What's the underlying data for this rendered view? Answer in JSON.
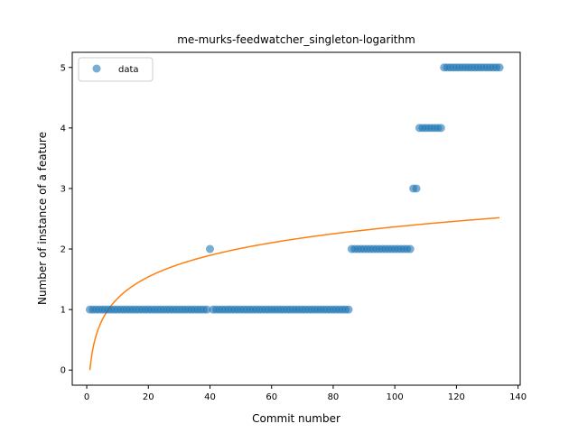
{
  "chart_data": {
    "type": "scatter",
    "title": "me-murks-feedwatcher_singleton-logarithm",
    "xlabel": "Commit number",
    "ylabel": "Number of instance of a feature",
    "xlim": [
      -4.7,
      140.7
    ],
    "ylim": [
      -0.25,
      5.25
    ],
    "xticks": [
      0,
      20,
      40,
      60,
      80,
      100,
      120,
      140
    ],
    "yticks": [
      0,
      1,
      2,
      3,
      4,
      5
    ],
    "legend": {
      "position": "top-left",
      "entries": [
        "data"
      ]
    },
    "grid": false,
    "colors": {
      "data": "#1f77b4",
      "fit": "#ff7f0e"
    },
    "series": [
      {
        "name": "data",
        "kind": "scatter",
        "points": [
          [
            1,
            1
          ],
          [
            2,
            1
          ],
          [
            3,
            1
          ],
          [
            4,
            1
          ],
          [
            5,
            1
          ],
          [
            6,
            1
          ],
          [
            7,
            1
          ],
          [
            8,
            1
          ],
          [
            9,
            1
          ],
          [
            10,
            1
          ],
          [
            11,
            1
          ],
          [
            12,
            1
          ],
          [
            13,
            1
          ],
          [
            14,
            1
          ],
          [
            15,
            1
          ],
          [
            16,
            1
          ],
          [
            17,
            1
          ],
          [
            18,
            1
          ],
          [
            19,
            1
          ],
          [
            20,
            1
          ],
          [
            21,
            1
          ],
          [
            22,
            1
          ],
          [
            23,
            1
          ],
          [
            24,
            1
          ],
          [
            25,
            1
          ],
          [
            26,
            1
          ],
          [
            27,
            1
          ],
          [
            28,
            1
          ],
          [
            29,
            1
          ],
          [
            30,
            1
          ],
          [
            31,
            1
          ],
          [
            32,
            1
          ],
          [
            33,
            1
          ],
          [
            34,
            1
          ],
          [
            35,
            1
          ],
          [
            36,
            1
          ],
          [
            37,
            1
          ],
          [
            38,
            1
          ],
          [
            39,
            1
          ],
          [
            40,
            2
          ],
          [
            41,
            1
          ],
          [
            42,
            1
          ],
          [
            43,
            1
          ],
          [
            44,
            1
          ],
          [
            45,
            1
          ],
          [
            46,
            1
          ],
          [
            47,
            1
          ],
          [
            48,
            1
          ],
          [
            49,
            1
          ],
          [
            50,
            1
          ],
          [
            51,
            1
          ],
          [
            52,
            1
          ],
          [
            53,
            1
          ],
          [
            54,
            1
          ],
          [
            55,
            1
          ],
          [
            56,
            1
          ],
          [
            57,
            1
          ],
          [
            58,
            1
          ],
          [
            59,
            1
          ],
          [
            60,
            1
          ],
          [
            61,
            1
          ],
          [
            62,
            1
          ],
          [
            63,
            1
          ],
          [
            64,
            1
          ],
          [
            65,
            1
          ],
          [
            66,
            1
          ],
          [
            67,
            1
          ],
          [
            68,
            1
          ],
          [
            69,
            1
          ],
          [
            70,
            1
          ],
          [
            71,
            1
          ],
          [
            72,
            1
          ],
          [
            73,
            1
          ],
          [
            74,
            1
          ],
          [
            75,
            1
          ],
          [
            76,
            1
          ],
          [
            77,
            1
          ],
          [
            78,
            1
          ],
          [
            79,
            1
          ],
          [
            80,
            1
          ],
          [
            81,
            1
          ],
          [
            82,
            1
          ],
          [
            83,
            1
          ],
          [
            84,
            1
          ],
          [
            85,
            1
          ],
          [
            86,
            2
          ],
          [
            87,
            2
          ],
          [
            88,
            2
          ],
          [
            89,
            2
          ],
          [
            90,
            2
          ],
          [
            91,
            2
          ],
          [
            92,
            2
          ],
          [
            93,
            2
          ],
          [
            94,
            2
          ],
          [
            95,
            2
          ],
          [
            96,
            2
          ],
          [
            97,
            2
          ],
          [
            98,
            2
          ],
          [
            99,
            2
          ],
          [
            100,
            2
          ],
          [
            101,
            2
          ],
          [
            102,
            2
          ],
          [
            103,
            2
          ],
          [
            104,
            2
          ],
          [
            105,
            2
          ],
          [
            106,
            3
          ],
          [
            107,
            3
          ],
          [
            108,
            4
          ],
          [
            109,
            4
          ],
          [
            110,
            4
          ],
          [
            111,
            4
          ],
          [
            112,
            4
          ],
          [
            113,
            4
          ],
          [
            114,
            4
          ],
          [
            115,
            4
          ],
          [
            116,
            5
          ],
          [
            117,
            5
          ],
          [
            118,
            5
          ],
          [
            119,
            5
          ],
          [
            120,
            5
          ],
          [
            121,
            5
          ],
          [
            122,
            5
          ],
          [
            123,
            5
          ],
          [
            124,
            5
          ],
          [
            125,
            5
          ],
          [
            126,
            5
          ],
          [
            127,
            5
          ],
          [
            128,
            5
          ],
          [
            129,
            5
          ],
          [
            130,
            5
          ],
          [
            131,
            5
          ],
          [
            132,
            5
          ],
          [
            133,
            5
          ],
          [
            134,
            5
          ]
        ]
      },
      {
        "kind": "line",
        "function": "logarithmic",
        "a": 0.5138,
        "b": 0,
        "x_start": 1,
        "x_end": 134
      }
    ]
  }
}
